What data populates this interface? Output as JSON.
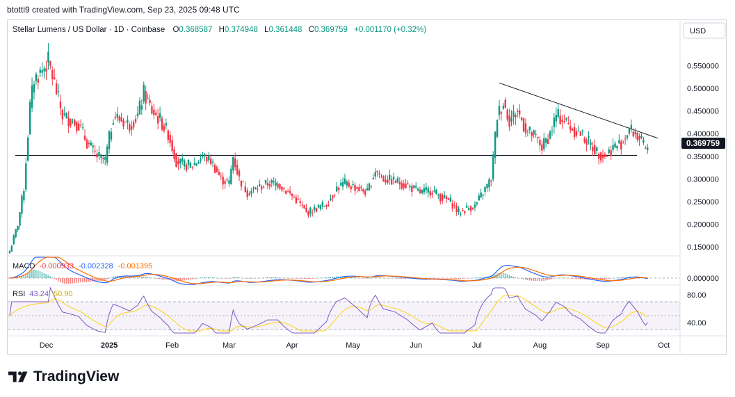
{
  "header": {
    "text": "btotti9 created with TradingView.com, Sep 23, 2025 09:48 UTC"
  },
  "legend": {
    "symbol": "Stellar Lumens / US Dollar · 1D · Coinbase",
    "open_label": "O",
    "open": "0.368587",
    "high_label": "H",
    "high": "0.374948",
    "low_label": "L",
    "low": "0.361448",
    "close_label": "C",
    "close": "0.369759",
    "change": "+0.001170 (+0.32%)"
  },
  "currency": "USD",
  "price_tag": "0.369759",
  "macd": {
    "label": "MACD",
    "hist": "-0.000933",
    "macd": "-0.002328",
    "signal": "-0.001395",
    "axis_label": "0.000000"
  },
  "rsi": {
    "label": "RSI",
    "value": "43.24",
    "ma": "50.90",
    "ticks": [
      "80.00",
      "40.00"
    ]
  },
  "brand": {
    "name": "TradingView"
  },
  "colors": {
    "up": "#089981",
    "down": "#f23645",
    "macd": "#2962ff",
    "signal": "#ff6d00",
    "rsi": "#7e57c2",
    "rsi_ma": "#fdd835",
    "rsi_band": "#7e57c2"
  },
  "chart_data": {
    "type": "candlestick",
    "title": "Stellar Lumens / US Dollar · 1D · Coinbase",
    "y_ticks": [
      "0.550000",
      "0.500000",
      "0.450000",
      "0.400000",
      "0.350000",
      "0.300000",
      "0.250000",
      "0.200000",
      "0.150000"
    ],
    "ylim": [
      0.13,
      0.6
    ],
    "x_ticks": [
      "Dec",
      "2025",
      "Feb",
      "Mar",
      "Apr",
      "May",
      "Jun",
      "Jul",
      "Aug",
      "Sep",
      "Oct"
    ],
    "x_range": [
      "2024-11-12",
      "2025-10-09"
    ],
    "support_level": 0.352,
    "trendline": {
      "start": [
        "2025-07-12",
        0.512
      ],
      "end": [
        "2025-09-28",
        0.39
      ]
    },
    "close_path": [
      [
        "2024-11-13",
        0.14
      ],
      [
        "2024-11-17",
        0.2
      ],
      [
        "2024-11-20",
        0.28
      ],
      [
        "2024-11-23",
        0.46
      ],
      [
        "2024-11-25",
        0.52
      ],
      [
        "2024-11-29",
        0.54
      ],
      [
        "2024-12-02",
        0.56
      ],
      [
        "2024-12-05",
        0.51
      ],
      [
        "2024-12-09",
        0.44
      ],
      [
        "2024-12-13",
        0.43
      ],
      [
        "2024-12-17",
        0.42
      ],
      [
        "2024-12-21",
        0.38
      ],
      [
        "2024-12-26",
        0.35
      ],
      [
        "2024-12-30",
        0.34
      ],
      [
        "2025-01-03",
        0.44
      ],
      [
        "2025-01-07",
        0.43
      ],
      [
        "2025-01-11",
        0.42
      ],
      [
        "2025-01-15",
        0.44
      ],
      [
        "2025-01-18",
        0.49
      ],
      [
        "2025-01-22",
        0.45
      ],
      [
        "2025-01-26",
        0.43
      ],
      [
        "2025-01-30",
        0.4
      ],
      [
        "2025-02-03",
        0.34
      ],
      [
        "2025-02-07",
        0.33
      ],
      [
        "2025-02-11",
        0.33
      ],
      [
        "2025-02-16",
        0.35
      ],
      [
        "2025-02-20",
        0.34
      ],
      [
        "2025-02-25",
        0.3
      ],
      [
        "2025-03-01",
        0.29
      ],
      [
        "2025-03-03",
        0.35
      ],
      [
        "2025-03-06",
        0.3
      ],
      [
        "2025-03-10",
        0.27
      ],
      [
        "2025-03-15",
        0.28
      ],
      [
        "2025-03-20",
        0.29
      ],
      [
        "2025-03-25",
        0.29
      ],
      [
        "2025-03-30",
        0.27
      ],
      [
        "2025-04-04",
        0.25
      ],
      [
        "2025-04-08",
        0.225
      ],
      [
        "2025-04-13",
        0.235
      ],
      [
        "2025-04-18",
        0.245
      ],
      [
        "2025-04-23",
        0.28
      ],
      [
        "2025-04-27",
        0.29
      ],
      [
        "2025-05-03",
        0.28
      ],
      [
        "2025-05-08",
        0.27
      ],
      [
        "2025-05-12",
        0.32
      ],
      [
        "2025-05-16",
        0.3
      ],
      [
        "2025-05-22",
        0.295
      ],
      [
        "2025-05-28",
        0.285
      ],
      [
        "2025-06-03",
        0.27
      ],
      [
        "2025-06-09",
        0.275
      ],
      [
        "2025-06-13",
        0.26
      ],
      [
        "2025-06-18",
        0.25
      ],
      [
        "2025-06-22",
        0.225
      ],
      [
        "2025-06-26",
        0.235
      ],
      [
        "2025-06-30",
        0.24
      ],
      [
        "2025-07-04",
        0.27
      ],
      [
        "2025-07-08",
        0.3
      ],
      [
        "2025-07-11",
        0.44
      ],
      [
        "2025-07-14",
        0.47
      ],
      [
        "2025-07-17",
        0.43
      ],
      [
        "2025-07-21",
        0.45
      ],
      [
        "2025-07-25",
        0.41
      ],
      [
        "2025-07-30",
        0.39
      ],
      [
        "2025-08-02",
        0.37
      ],
      [
        "2025-08-06",
        0.4
      ],
      [
        "2025-08-09",
        0.44
      ],
      [
        "2025-08-13",
        0.43
      ],
      [
        "2025-08-17",
        0.41
      ],
      [
        "2025-08-21",
        0.4
      ],
      [
        "2025-08-25",
        0.38
      ],
      [
        "2025-08-29",
        0.36
      ],
      [
        "2025-09-02",
        0.35
      ],
      [
        "2025-09-06",
        0.37
      ],
      [
        "2025-09-10",
        0.38
      ],
      [
        "2025-09-14",
        0.41
      ],
      [
        "2025-09-18",
        0.395
      ],
      [
        "2025-09-20",
        0.38
      ],
      [
        "2025-09-22",
        0.365
      ],
      [
        "2025-09-23",
        0.369759
      ]
    ]
  }
}
